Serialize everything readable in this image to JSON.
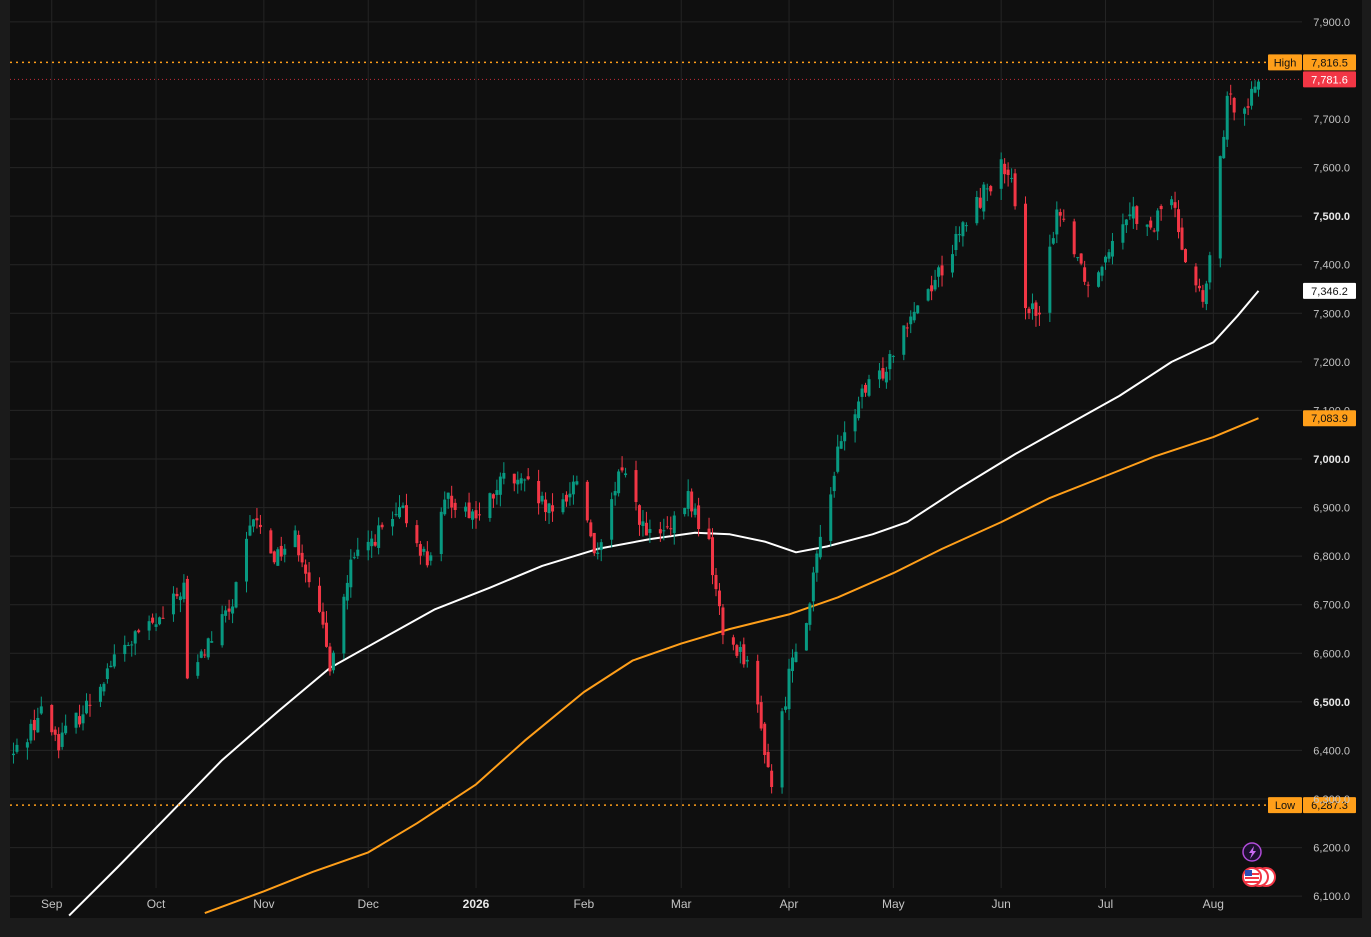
{
  "chart_data": {
    "type": "candlestick",
    "title": "",
    "xlabel": "",
    "ylabel": "",
    "ylim": [
      6055,
      7945
    ],
    "x_range": [
      "2025-08-20",
      "2026-08-15"
    ],
    "y_ticks": [
      {
        "value": 6100,
        "label": "6,100.0",
        "bold": false
      },
      {
        "value": 6200,
        "label": "6,200.0",
        "bold": false
      },
      {
        "value": 6300,
        "label": "6,300.0",
        "bold": false
      },
      {
        "value": 6400,
        "label": "6,400.0",
        "bold": false
      },
      {
        "value": 6500,
        "label": "6,500.0",
        "bold": true
      },
      {
        "value": 6600,
        "label": "6,600.0",
        "bold": false
      },
      {
        "value": 6700,
        "label": "6,700.0",
        "bold": false
      },
      {
        "value": 6800,
        "label": "6,800.0",
        "bold": false
      },
      {
        "value": 6900,
        "label": "6,900.0",
        "bold": false
      },
      {
        "value": 7000,
        "label": "7,000.0",
        "bold": true
      },
      {
        "value": 7100,
        "label": "7,100.0",
        "bold": false
      },
      {
        "value": 7200,
        "label": "7,200.0",
        "bold": false
      },
      {
        "value": 7300,
        "label": "7,300.0",
        "bold": false
      },
      {
        "value": 7400,
        "label": "7,400.0",
        "bold": false
      },
      {
        "value": 7500,
        "label": "7,500.0",
        "bold": true
      },
      {
        "value": 7600,
        "label": "7,600.0",
        "bold": false
      },
      {
        "value": 7700,
        "label": "7,700.0",
        "bold": false
      },
      {
        "value": 7900,
        "label": "7,900.0",
        "bold": false
      }
    ],
    "x_ticks": [
      {
        "date": "2025-09-01",
        "label": "Sep",
        "bold": false
      },
      {
        "date": "2025-10-01",
        "label": "Oct",
        "bold": false
      },
      {
        "date": "2025-11-01",
        "label": "Nov",
        "bold": false
      },
      {
        "date": "2025-12-01",
        "label": "Dec",
        "bold": false
      },
      {
        "date": "2026-01-01",
        "label": "2026",
        "bold": true
      },
      {
        "date": "2026-02-01",
        "label": "Feb",
        "bold": false
      },
      {
        "date": "2026-03-01",
        "label": "Mar",
        "bold": false
      },
      {
        "date": "2026-04-01",
        "label": "Apr",
        "bold": false
      },
      {
        "date": "2026-05-01",
        "label": "May",
        "bold": false
      },
      {
        "date": "2026-06-01",
        "label": "Jun",
        "bold": false
      },
      {
        "date": "2026-07-01",
        "label": "Jul",
        "bold": false
      },
      {
        "date": "2026-08-01",
        "label": "Aug",
        "bold": false
      }
    ],
    "grid": true,
    "price_anchors": [
      [
        "2025-08-21",
        6390
      ],
      [
        "2025-08-29",
        6480
      ],
      [
        "2025-09-03",
        6420
      ],
      [
        "2025-09-11",
        6490
      ],
      [
        "2025-09-18",
        6580
      ],
      [
        "2025-09-26",
        6640
      ],
      [
        "2025-10-03",
        6670
      ],
      [
        "2025-10-09",
        6740
      ],
      [
        "2025-10-10",
        6540
      ],
      [
        "2025-10-16",
        6620
      ],
      [
        "2025-10-23",
        6700
      ],
      [
        "2025-10-29",
        6880
      ],
      [
        "2025-11-04",
        6800
      ],
      [
        "2025-11-10",
        6840
      ],
      [
        "2025-11-14",
        6760
      ],
      [
        "2025-11-20",
        6580
      ],
      [
        "2025-11-26",
        6780
      ],
      [
        "2025-12-03",
        6840
      ],
      [
        "2025-12-11",
        6890
      ],
      [
        "2025-12-18",
        6790
      ],
      [
        "2025-12-24",
        6920
      ],
      [
        "2026-01-02",
        6880
      ],
      [
        "2026-01-09",
        6960
      ],
      [
        "2026-01-16",
        6940
      ],
      [
        "2026-01-23",
        6880
      ],
      [
        "2026-01-30",
        6960
      ],
      [
        "2026-02-05",
        6790
      ],
      [
        "2026-02-12",
        6990
      ],
      [
        "2026-02-19",
        6840
      ],
      [
        "2026-02-26",
        6850
      ],
      [
        "2026-03-03",
        6920
      ],
      [
        "2026-03-09",
        6820
      ],
      [
        "2026-03-13",
        6640
      ],
      [
        "2026-03-20",
        6590
      ],
      [
        "2026-03-27",
        6330
      ],
      [
        "2026-04-02",
        6600
      ],
      [
        "2026-04-07",
        6700
      ],
      [
        "2026-04-10",
        6840
      ],
      [
        "2026-04-15",
        7010
      ],
      [
        "2026-04-21",
        7120
      ],
      [
        "2026-04-28",
        7180
      ],
      [
        "2026-05-04",
        7280
      ],
      [
        "2026-05-11",
        7350
      ],
      [
        "2026-05-18",
        7430
      ],
      [
        "2026-05-22",
        7490
      ],
      [
        "2026-05-28",
        7560
      ],
      [
        "2026-06-01",
        7600
      ],
      [
        "2026-06-04",
        7560
      ],
      [
        "2026-06-08",
        7330
      ],
      [
        "2026-06-12",
        7280
      ],
      [
        "2026-06-17",
        7520
      ],
      [
        "2026-06-22",
        7440
      ],
      [
        "2026-06-27",
        7340
      ],
      [
        "2026-07-01",
        7430
      ],
      [
        "2026-07-08",
        7520
      ],
      [
        "2026-07-14",
        7460
      ],
      [
        "2026-07-19",
        7560
      ],
      [
        "2026-07-24",
        7420
      ],
      [
        "2026-07-29",
        7320
      ],
      [
        "2026-08-01",
        7440
      ],
      [
        "2026-08-03",
        7620
      ],
      [
        "2026-08-05",
        7730
      ],
      [
        "2026-08-11",
        7740
      ],
      [
        "2026-08-14",
        7782
      ]
    ],
    "moving_averages": [
      {
        "color": "#ffffff",
        "points": [
          [
            "2025-09-06",
            6060
          ],
          [
            "2025-09-20",
            6160
          ],
          [
            "2025-10-05",
            6270
          ],
          [
            "2025-10-20",
            6380
          ],
          [
            "2025-11-05",
            6480
          ],
          [
            "2025-11-20",
            6570
          ],
          [
            "2025-12-05",
            6630
          ],
          [
            "2025-12-20",
            6690
          ],
          [
            "2026-01-05",
            6735
          ],
          [
            "2026-01-20",
            6780
          ],
          [
            "2026-02-05",
            6815
          ],
          [
            "2026-02-20",
            6835
          ],
          [
            "2026-03-05",
            6848
          ],
          [
            "2026-03-15",
            6845
          ],
          [
            "2026-03-25",
            6830
          ],
          [
            "2026-04-03",
            6808
          ],
          [
            "2026-04-12",
            6820
          ],
          [
            "2026-04-25",
            6845
          ],
          [
            "2026-05-05",
            6870
          ],
          [
            "2026-05-20",
            6940
          ],
          [
            "2026-06-05",
            7010
          ],
          [
            "2026-06-20",
            7070
          ],
          [
            "2026-07-05",
            7130
          ],
          [
            "2026-07-20",
            7200
          ],
          [
            "2026-08-01",
            7240
          ],
          [
            "2026-08-08",
            7295
          ],
          [
            "2026-08-14",
            7346
          ]
        ]
      },
      {
        "color": "#ff9f1a",
        "points": [
          [
            "2025-10-15",
            6065
          ],
          [
            "2025-11-01",
            6110
          ],
          [
            "2025-11-15",
            6150
          ],
          [
            "2025-12-01",
            6190
          ],
          [
            "2025-12-15",
            6250
          ],
          [
            "2026-01-01",
            6330
          ],
          [
            "2026-01-15",
            6420
          ],
          [
            "2026-02-01",
            6520
          ],
          [
            "2026-02-15",
            6585
          ],
          [
            "2026-03-01",
            6620
          ],
          [
            "2026-03-15",
            6650
          ],
          [
            "2026-04-01",
            6680
          ],
          [
            "2026-04-15",
            6715
          ],
          [
            "2026-05-01",
            6765
          ],
          [
            "2026-05-15",
            6815
          ],
          [
            "2026-06-01",
            6870
          ],
          [
            "2026-06-15",
            6920
          ],
          [
            "2026-07-01",
            6965
          ],
          [
            "2026-07-15",
            7005
          ],
          [
            "2026-08-01",
            7045
          ],
          [
            "2026-08-14",
            7084
          ]
        ]
      }
    ],
    "high_line": {
      "value": 7816.5,
      "label": "High",
      "price_label": "7,816.5",
      "color": "#ff9f1a"
    },
    "low_line": {
      "value": 6287.3,
      "label": "Low",
      "price_label": "6,287.3",
      "color": "#ff9f1a"
    },
    "price_tags": [
      {
        "value": 7781.6,
        "label": "7,781.6",
        "bg": "#f23645",
        "fg": "#ffffff"
      },
      {
        "value": 7346.2,
        "label": "7,346.2",
        "bg": "#ffffff",
        "fg": "#111111"
      },
      {
        "value": 7083.9,
        "label": "7,083.9",
        "bg": "#ff9f1a",
        "fg": "#111111"
      }
    ],
    "up_color": "#089981",
    "down_color": "#f23645"
  }
}
